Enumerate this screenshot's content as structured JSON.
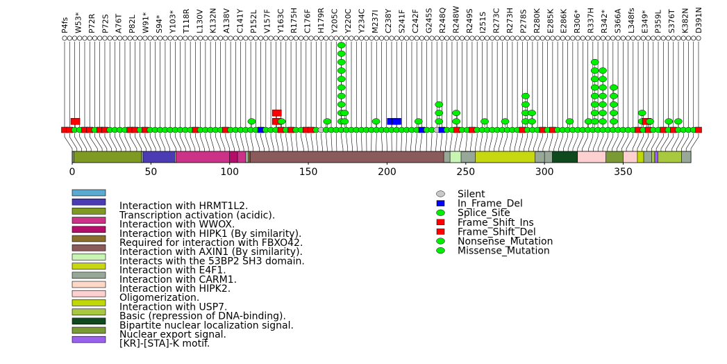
{
  "chart_data": {
    "type": "lollipop",
    "protein_length": 393,
    "axis": {
      "ticks": [
        0,
        50,
        100,
        150,
        200,
        250,
        300,
        350
      ],
      "tick_labels": [
        "0",
        "50",
        "100",
        "150",
        "200",
        "250",
        "300",
        "350"
      ],
      "range": [
        0,
        393
      ]
    },
    "mutation_types": [
      {
        "name": "Silent",
        "color": "#c8c8c8",
        "shape": "circle"
      },
      {
        "name": "In_Frame_Del",
        "color": "#0000ff",
        "shape": "square"
      },
      {
        "name": "Splice_Site",
        "color": "#00ee00",
        "shape": "circle"
      },
      {
        "name": "Frame_Shift_Ins",
        "color": "#ff0000",
        "shape": "square"
      },
      {
        "name": "Frame_Shift_Del",
        "color": "#ff0000",
        "shape": "square"
      },
      {
        "name": "Nonsense_Mutation",
        "color": "#00ee00",
        "shape": "circle"
      },
      {
        "name": "Missense_Mutation",
        "color": "#00ee00",
        "shape": "circle"
      }
    ],
    "domains": [
      {
        "name": "",
        "start": 0,
        "end": 0,
        "color": "#5aaad2"
      },
      {
        "name": "Interaction with HRMT1L2.",
        "start": 45,
        "end": 65,
        "color": "#4b3cb4"
      },
      {
        "name": "Transcription activation (acidic).",
        "start": 1,
        "end": 44,
        "color": "#7f9a22"
      },
      {
        "name": "Interaction with WWOX.",
        "start": 66,
        "end": 110,
        "color": "#cc3388"
      },
      {
        "name": "Interaction with HIPK1 (By similarity).",
        "start": 100,
        "end": 105,
        "color": "#b30f6a"
      },
      {
        "name": "Required for interaction with FBXO42.",
        "start": 112,
        "end": 113,
        "color": "#8b6d2d"
      },
      {
        "name": "Interaction with AXIN1 (By similarity).",
        "start": 113,
        "end": 236,
        "color": "#8b5a5a"
      },
      {
        "name": "Interacts with the 53BP2 SH3 domain.",
        "start": 240,
        "end": 247,
        "color": "#c8f5b4"
      },
      {
        "name": "Interaction with E4F1.",
        "start": 256,
        "end": 294,
        "color": "#c8d810"
      },
      {
        "name": "Interaction with CARM1.",
        "start": 300,
        "end": 393,
        "color": "#98a898"
      },
      {
        "name": "Interaction with HIPK2.",
        "start": 319,
        "end": 360,
        "color": "#ffd8c8"
      },
      {
        "name": "Oligomerization.",
        "start": 319,
        "end": 360,
        "color": "#ffd0d0"
      },
      {
        "name": "Interaction with USP7.",
        "start": 359,
        "end": 363,
        "color": "#c0d808"
      },
      {
        "name": "Basic (repression of DNA-binding).",
        "start": 368,
        "end": 387,
        "color": "#a8c840"
      },
      {
        "name": "Bipartite nuclear localization signal.",
        "start": 305,
        "end": 321,
        "color": "#0f4a1e"
      },
      {
        "name": "Nuclear export signal.",
        "start": 339,
        "end": 350,
        "color": "#7a9a36"
      },
      {
        "name": "[KR]-[STA]-K motif.",
        "start": 370,
        "end": 372,
        "color": "#9a60ee"
      }
    ],
    "stacks": [
      {
        "pos": 2,
        "colors": [
          "red"
        ]
      },
      {
        "pos": 114,
        "colors": [
          "green"
        ]
      },
      {
        "pos": 130,
        "colors": [
          "red",
          "red"
        ]
      },
      {
        "pos": 133,
        "colors": [
          "green"
        ]
      },
      {
        "pos": 162,
        "colors": [
          "green"
        ]
      },
      {
        "pos": 171,
        "colors": [
          "green",
          "green",
          "green",
          "green",
          "green",
          "green",
          "green",
          "green",
          "green",
          "green"
        ]
      },
      {
        "pos": 173,
        "colors": [
          "green",
          "green"
        ]
      },
      {
        "pos": 193,
        "colors": [
          "green"
        ]
      },
      {
        "pos": 203,
        "colors": [
          "blue"
        ]
      },
      {
        "pos": 206,
        "colors": [
          "blue"
        ]
      },
      {
        "pos": 220,
        "colors": [
          "green"
        ]
      },
      {
        "pos": 233,
        "colors": [
          "green",
          "green",
          "green"
        ]
      },
      {
        "pos": 244,
        "colors": [
          "green",
          "green"
        ]
      },
      {
        "pos": 262,
        "colors": [
          "green"
        ]
      },
      {
        "pos": 275,
        "colors": [
          "green"
        ]
      },
      {
        "pos": 288,
        "colors": [
          "green",
          "green",
          "green",
          "green"
        ]
      },
      {
        "pos": 292,
        "colors": [
          "green",
          "green"
        ]
      },
      {
        "pos": 316,
        "colors": [
          "green"
        ]
      },
      {
        "pos": 328,
        "colors": [
          "green"
        ]
      },
      {
        "pos": 332,
        "colors": [
          "green",
          "green",
          "green",
          "green",
          "green",
          "green",
          "green",
          "green"
        ]
      },
      {
        "pos": 337,
        "colors": [
          "green",
          "green",
          "green",
          "green",
          "green",
          "green",
          "green"
        ]
      },
      {
        "pos": 344,
        "colors": [
          "green",
          "green",
          "green",
          "green",
          "green"
        ]
      },
      {
        "pos": 362,
        "colors": [
          "green",
          "green"
        ]
      },
      {
        "pos": 365,
        "colors": [
          "red"
        ]
      },
      {
        "pos": 367,
        "colors": [
          "green"
        ]
      },
      {
        "pos": 379,
        "colors": [
          "green"
        ]
      },
      {
        "pos": 385,
        "colors": [
          "green"
        ]
      }
    ],
    "baseline_tokens": "R R G G R R G R R G G G G R R G R G G G G G G G G G R G G G G G R G G G G G G B G G G R G R G G R R G S G G G G G G G G G G G G G G G G G G G B G G S B G G R G G R G G G G G G G G G R G G G R G R G G G G G G G G G G G G G G G G R G R G G R G R G G G G R",
    "mutation_labels": [
      "P4fs",
      "W53*",
      "P72R",
      "P72S",
      "A76T",
      "P82L",
      "W91*",
      "S94*",
      "Y103*",
      "T118R",
      "L130V",
      "K132N",
      "A138V",
      "C141Y",
      "P152L",
      "V157F",
      "Y163C",
      "R175H",
      "C176F",
      "H179R",
      "Y205C",
      "Y220C",
      "Y234C",
      "M237I",
      "C238Y",
      "S241F",
      "C242F",
      "G245S",
      "R248Q",
      "R248W",
      "R249S",
      "I251S",
      "R273C",
      "R273H",
      "P278S",
      "R280K",
      "E285K",
      "E286K",
      "R306*",
      "R337H",
      "R342*",
      "S366A",
      "L348fs",
      "E349*",
      "P359L",
      "S376T",
      "K382N",
      "D391N"
    ]
  }
}
